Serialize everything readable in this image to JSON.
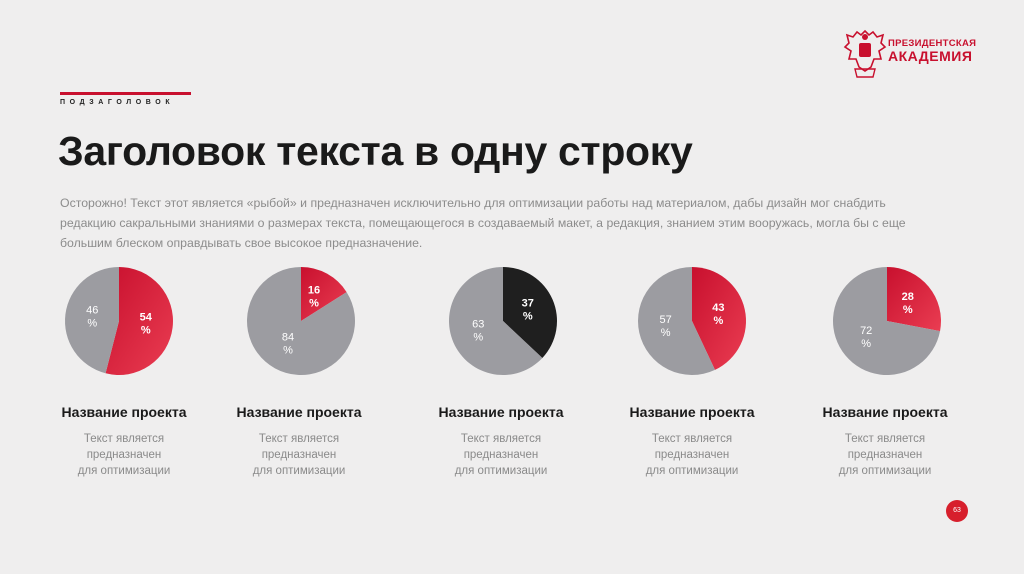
{
  "logo": {
    "line1": "ПРЕЗИДЕНТСКАЯ",
    "line2": "АКАДЕМИЯ",
    "icon": "double-headed-eagle-emblem"
  },
  "header": {
    "eyebrow": "ПОДЗАГОЛОВОК",
    "title": "Заголовок текста в одну строку",
    "lead": "Осторожно! Текст этот является «рыбой» и предназначен исключительно для оптимизации работы над материалом, дабы дизайн мог снабдить редакцию сакральными знаниями о размерах текста, помещающегося в создаваемый макет, а редакция, знанием этим вооружась, могла бы с еще большим блеском оправдывать свое высокое предназначение."
  },
  "colors": {
    "accent": "#d71f2c",
    "accent_dark": "#c8102e",
    "neutral": "#9c9ca1",
    "dark": "#1f1f1f",
    "background": "#efeeee"
  },
  "chart_data": [
    {
      "type": "pie",
      "slices": [
        {
          "label": "54\n%",
          "value": 54,
          "color": "red"
        },
        {
          "label": "46\n%",
          "value": 46,
          "color": "gray"
        }
      ]
    },
    {
      "type": "pie",
      "slices": [
        {
          "label": "16\n%",
          "value": 16,
          "color": "red"
        },
        {
          "label": "84\n%",
          "value": 84,
          "color": "gray"
        }
      ]
    },
    {
      "type": "pie",
      "slices": [
        {
          "label": "37\n%",
          "value": 37,
          "color": "black"
        },
        {
          "label": "63\n%",
          "value": 63,
          "color": "gray"
        }
      ]
    },
    {
      "type": "pie",
      "slices": [
        {
          "label": "43\n%",
          "value": 43,
          "color": "red"
        },
        {
          "label": "57\n%",
          "value": 57,
          "color": "gray"
        }
      ]
    },
    {
      "type": "pie",
      "slices": [
        {
          "label": "28\n%",
          "value": 28,
          "color": "red"
        },
        {
          "label": "72\n%",
          "value": 72,
          "color": "gray"
        }
      ]
    }
  ],
  "projects": [
    {
      "title": "Название проекта",
      "desc": "Текст является\nпредназначен\nдля оптимизации"
    },
    {
      "title": "Название проекта",
      "desc": "Текст является\nпредназначен\nдля оптимизации"
    },
    {
      "title": "Название проекта",
      "desc": "Текст является\nпредназначен\nдля оптимизации"
    },
    {
      "title": "Название проекта",
      "desc": "Текст является\nпредназначен\nдля оптимизации"
    },
    {
      "title": "Название проекта",
      "desc": "Текст является\nпредназначен\nдля оптимизации"
    }
  ],
  "page_number": "63"
}
